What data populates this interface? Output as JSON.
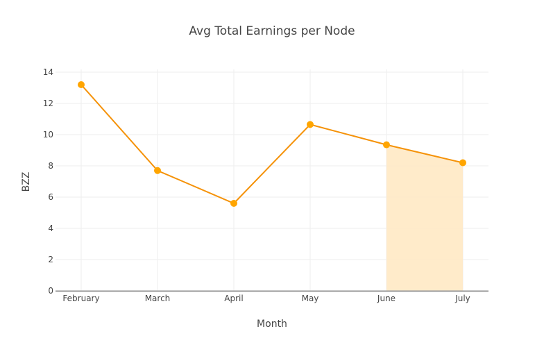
{
  "chart_data": {
    "type": "line",
    "title": "Avg Total Earnings per Node",
    "xlabel": "Month",
    "ylabel": "BZZ",
    "categories": [
      "February",
      "March",
      "April",
      "May",
      "June",
      "July"
    ],
    "series": [
      {
        "name": "Avg Total Earnings per Node",
        "values": [
          13.2,
          7.7,
          5.6,
          10.65,
          9.35,
          8.2
        ],
        "color": "#ff9900"
      }
    ],
    "highlight": {
      "from": "June",
      "to": "July",
      "color": "#ffe9c4",
      "type": "filled-area-under-line"
    },
    "ylim": [
      0,
      14.4
    ],
    "yticks": [
      0,
      2,
      4,
      6,
      8,
      10,
      12,
      14
    ],
    "grid": true,
    "legend": "none"
  }
}
